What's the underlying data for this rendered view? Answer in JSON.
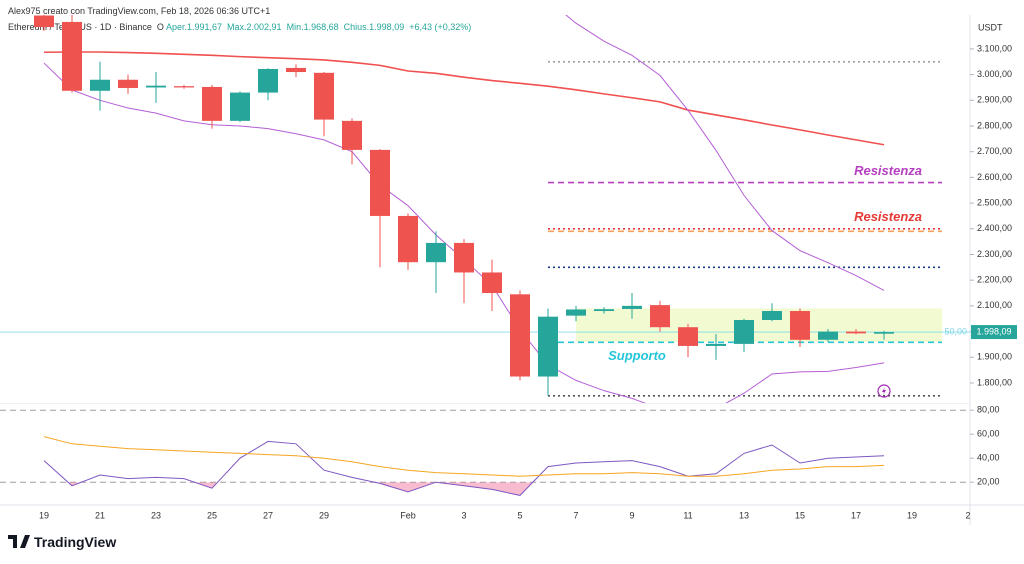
{
  "header": {
    "credit": "Alex975 creato con TradingView.com, Feb 18, 2026 06:36 UTC+1",
    "symbol": "Ethereum / TetherUS · 1D · Binance",
    "open_label": "O",
    "open": "Aper.1.991,67",
    "high": "Max.2.002,91",
    "low": "Min.1.968,68",
    "close": "Chius.1.998,09",
    "change": "+6,43 (+0,32%)",
    "logo": "TradingView"
  },
  "chart_data": [
    {
      "type": "candlestick",
      "currency": "USDT",
      "categories": [
        "19",
        null,
        "21",
        null,
        "23",
        null,
        "25",
        null,
        "27",
        null,
        "29",
        null,
        null,
        "Feb",
        null,
        "3",
        null,
        "5",
        null,
        "7",
        null,
        "9",
        null,
        "11",
        null,
        "13",
        null,
        "15",
        null,
        "17",
        null,
        "19",
        null,
        "2"
      ],
      "open": [
        3230,
        3205,
        2937,
        2980,
        2950,
        2955,
        2952,
        2820,
        2930,
        3026,
        3007,
        2820,
        2707,
        2450,
        2270,
        2345,
        2230,
        2145,
        1825,
        2062,
        2080,
        2088,
        2103,
        2017,
        1944,
        1952,
        2045,
        2080,
        1968,
        2000,
        1991.67,
        null,
        null,
        null
      ],
      "high": [
        3260,
        3232,
        3050,
        3000,
        3010,
        2960,
        2960,
        2935,
        3025,
        3040,
        3010,
        2830,
        2710,
        2460,
        2390,
        2360,
        2280,
        2160,
        2090,
        2100,
        2095,
        2150,
        2120,
        2030,
        1990,
        2050,
        2110,
        2090,
        2010,
        2010,
        2002.91,
        null,
        null,
        null
      ],
      "low": [
        3170,
        2930,
        2860,
        2925,
        2890,
        2945,
        2790,
        2815,
        2900,
        2990,
        2760,
        2650,
        2250,
        2240,
        2150,
        2110,
        2080,
        1810,
        1750,
        2040,
        2070,
        2050,
        2000,
        1900,
        1890,
        1920,
        2040,
        1940,
        1960,
        1990,
        1968.68,
        null,
        null,
        null
      ],
      "close": [
        3185,
        2937,
        2980,
        2948,
        2957,
        2950,
        2820,
        2930,
        3022,
        3010,
        2825,
        2707,
        2450,
        2270,
        2345,
        2230,
        2150,
        1825,
        2058,
        2086,
        2087,
        2100,
        2017,
        1944,
        1952,
        2045,
        2080,
        1968,
        2000,
        1993,
        1998.09,
        null,
        null,
        null
      ],
      "up_color": "#26a69a",
      "down_color": "#ef5350",
      "series": [
        {
          "color": "#f0504f",
          "values": [
            3087,
            3088,
            3088,
            3086,
            3083,
            3079,
            3075,
            3070,
            3066,
            3062,
            3057,
            3048,
            3036,
            3014,
            3005,
            2990,
            2977,
            2966,
            2955,
            2941,
            2925,
            2910,
            2894,
            2862,
            2843,
            2824,
            2804,
            2785,
            2765,
            2746,
            2727,
            null,
            null,
            null
          ]
        },
        {
          "color": "#b45fd6",
          "values": [
            null,
            null,
            null,
            null,
            null,
            null,
            null,
            null,
            null,
            null,
            null,
            null,
            null,
            null,
            null,
            null,
            null,
            null,
            3290,
            3200,
            3130,
            3075,
            2997,
            2861,
            2705,
            2530,
            2393,
            2315,
            2268,
            2218,
            2160,
            null,
            null,
            null
          ]
        },
        {
          "color": "#b45fd6",
          "values": [
            3045,
            2940,
            2900,
            2870,
            2850,
            2820,
            2805,
            2800,
            2790,
            2770,
            2746,
            2700,
            2570,
            2490,
            2376,
            2280,
            2180,
            2007,
            1870,
            1810,
            1770,
            1740,
            1700,
            1680,
            1700,
            1760,
            1835,
            1843,
            1845,
            1860,
            1878,
            null,
            null,
            null
          ]
        }
      ],
      "levels": [
        {
          "value": 3050,
          "color": "#9e9e9e",
          "style": "dotted"
        },
        {
          "value": 2580,
          "color": "#b540c0",
          "style": "dashed",
          "label": "Resistenza"
        },
        {
          "value": 2400,
          "color": "#e53935",
          "style": "dotted",
          "label": "Resistenza"
        },
        {
          "value": 2390,
          "color": "#f5a25d",
          "style": "dashed"
        },
        {
          "value": 2250,
          "color": "#1a3a8f",
          "style": "dotted"
        },
        {
          "value": 1958,
          "color": "#26c6da",
          "style": "dashed",
          "label": "Supporto"
        },
        {
          "value": 1750,
          "color": "#555555",
          "style": "dotted"
        }
      ],
      "zone": {
        "low": 1960,
        "high": 2090,
        "color": "#eef9c8"
      },
      "last_price": {
        "value": 1998.09,
        "label": "1.998,09",
        "color": "#26a69a"
      },
      "annotation": "50,00",
      "ylim": [
        1722,
        3232
      ],
      "yticks": [
        {
          "value": 1800,
          "label": "1.800,00"
        },
        {
          "value": 1900,
          "label": "1.900,00"
        },
        {
          "value": 2000,
          "label": "2.000,00"
        },
        {
          "value": 2100,
          "label": "2.100,00"
        },
        {
          "value": 2200,
          "label": "2.200,00"
        },
        {
          "value": 2300,
          "label": "2.300,00"
        },
        {
          "value": 2400,
          "label": "2.400,00"
        },
        {
          "value": 2500,
          "label": "2.500,00"
        },
        {
          "value": 2600,
          "label": "2.600,00"
        },
        {
          "value": 2700,
          "label": "2.700,00"
        },
        {
          "value": 2800,
          "label": "2.800,00"
        },
        {
          "value": 2900,
          "label": "2.900,00"
        },
        {
          "value": 3000,
          "label": "3.000,00"
        },
        {
          "value": 3100,
          "label": "3.100,00"
        }
      ],
      "grid": false
    },
    {
      "type": "line",
      "series": [
        {
          "color": "#7e57c2",
          "values": [
            38,
            17,
            26,
            23,
            24,
            23,
            15,
            40,
            54,
            52,
            30,
            24,
            19,
            12,
            20,
            17,
            14,
            9,
            33,
            36,
            37,
            38,
            33,
            25,
            27,
            44,
            51,
            36,
            40,
            41,
            42,
            null,
            null,
            null
          ]
        },
        {
          "color": "#f5a623",
          "values": [
            58,
            52,
            50,
            48,
            47,
            46,
            45,
            44,
            43,
            42,
            40,
            37,
            33,
            30,
            28,
            27,
            26,
            25,
            26,
            27,
            27,
            28,
            27,
            25,
            25,
            27,
            30,
            31,
            33,
            33,
            34,
            null,
            null,
            null
          ]
        }
      ],
      "levels": [
        {
          "value": 80,
          "color": "#9e9e9e",
          "style": "dashed"
        },
        {
          "value": 20,
          "color": "#9e9e9e",
          "style": "dashed"
        }
      ],
      "oversold_color": "#f48fb1",
      "ylim": [
        1,
        86
      ],
      "yticks": [
        {
          "value": 20,
          "label": "20,00"
        },
        {
          "value": 40,
          "label": "40,00"
        },
        {
          "value": 60,
          "label": "60,00"
        },
        {
          "value": 80,
          "label": "80,00"
        }
      ],
      "grid": false
    }
  ]
}
